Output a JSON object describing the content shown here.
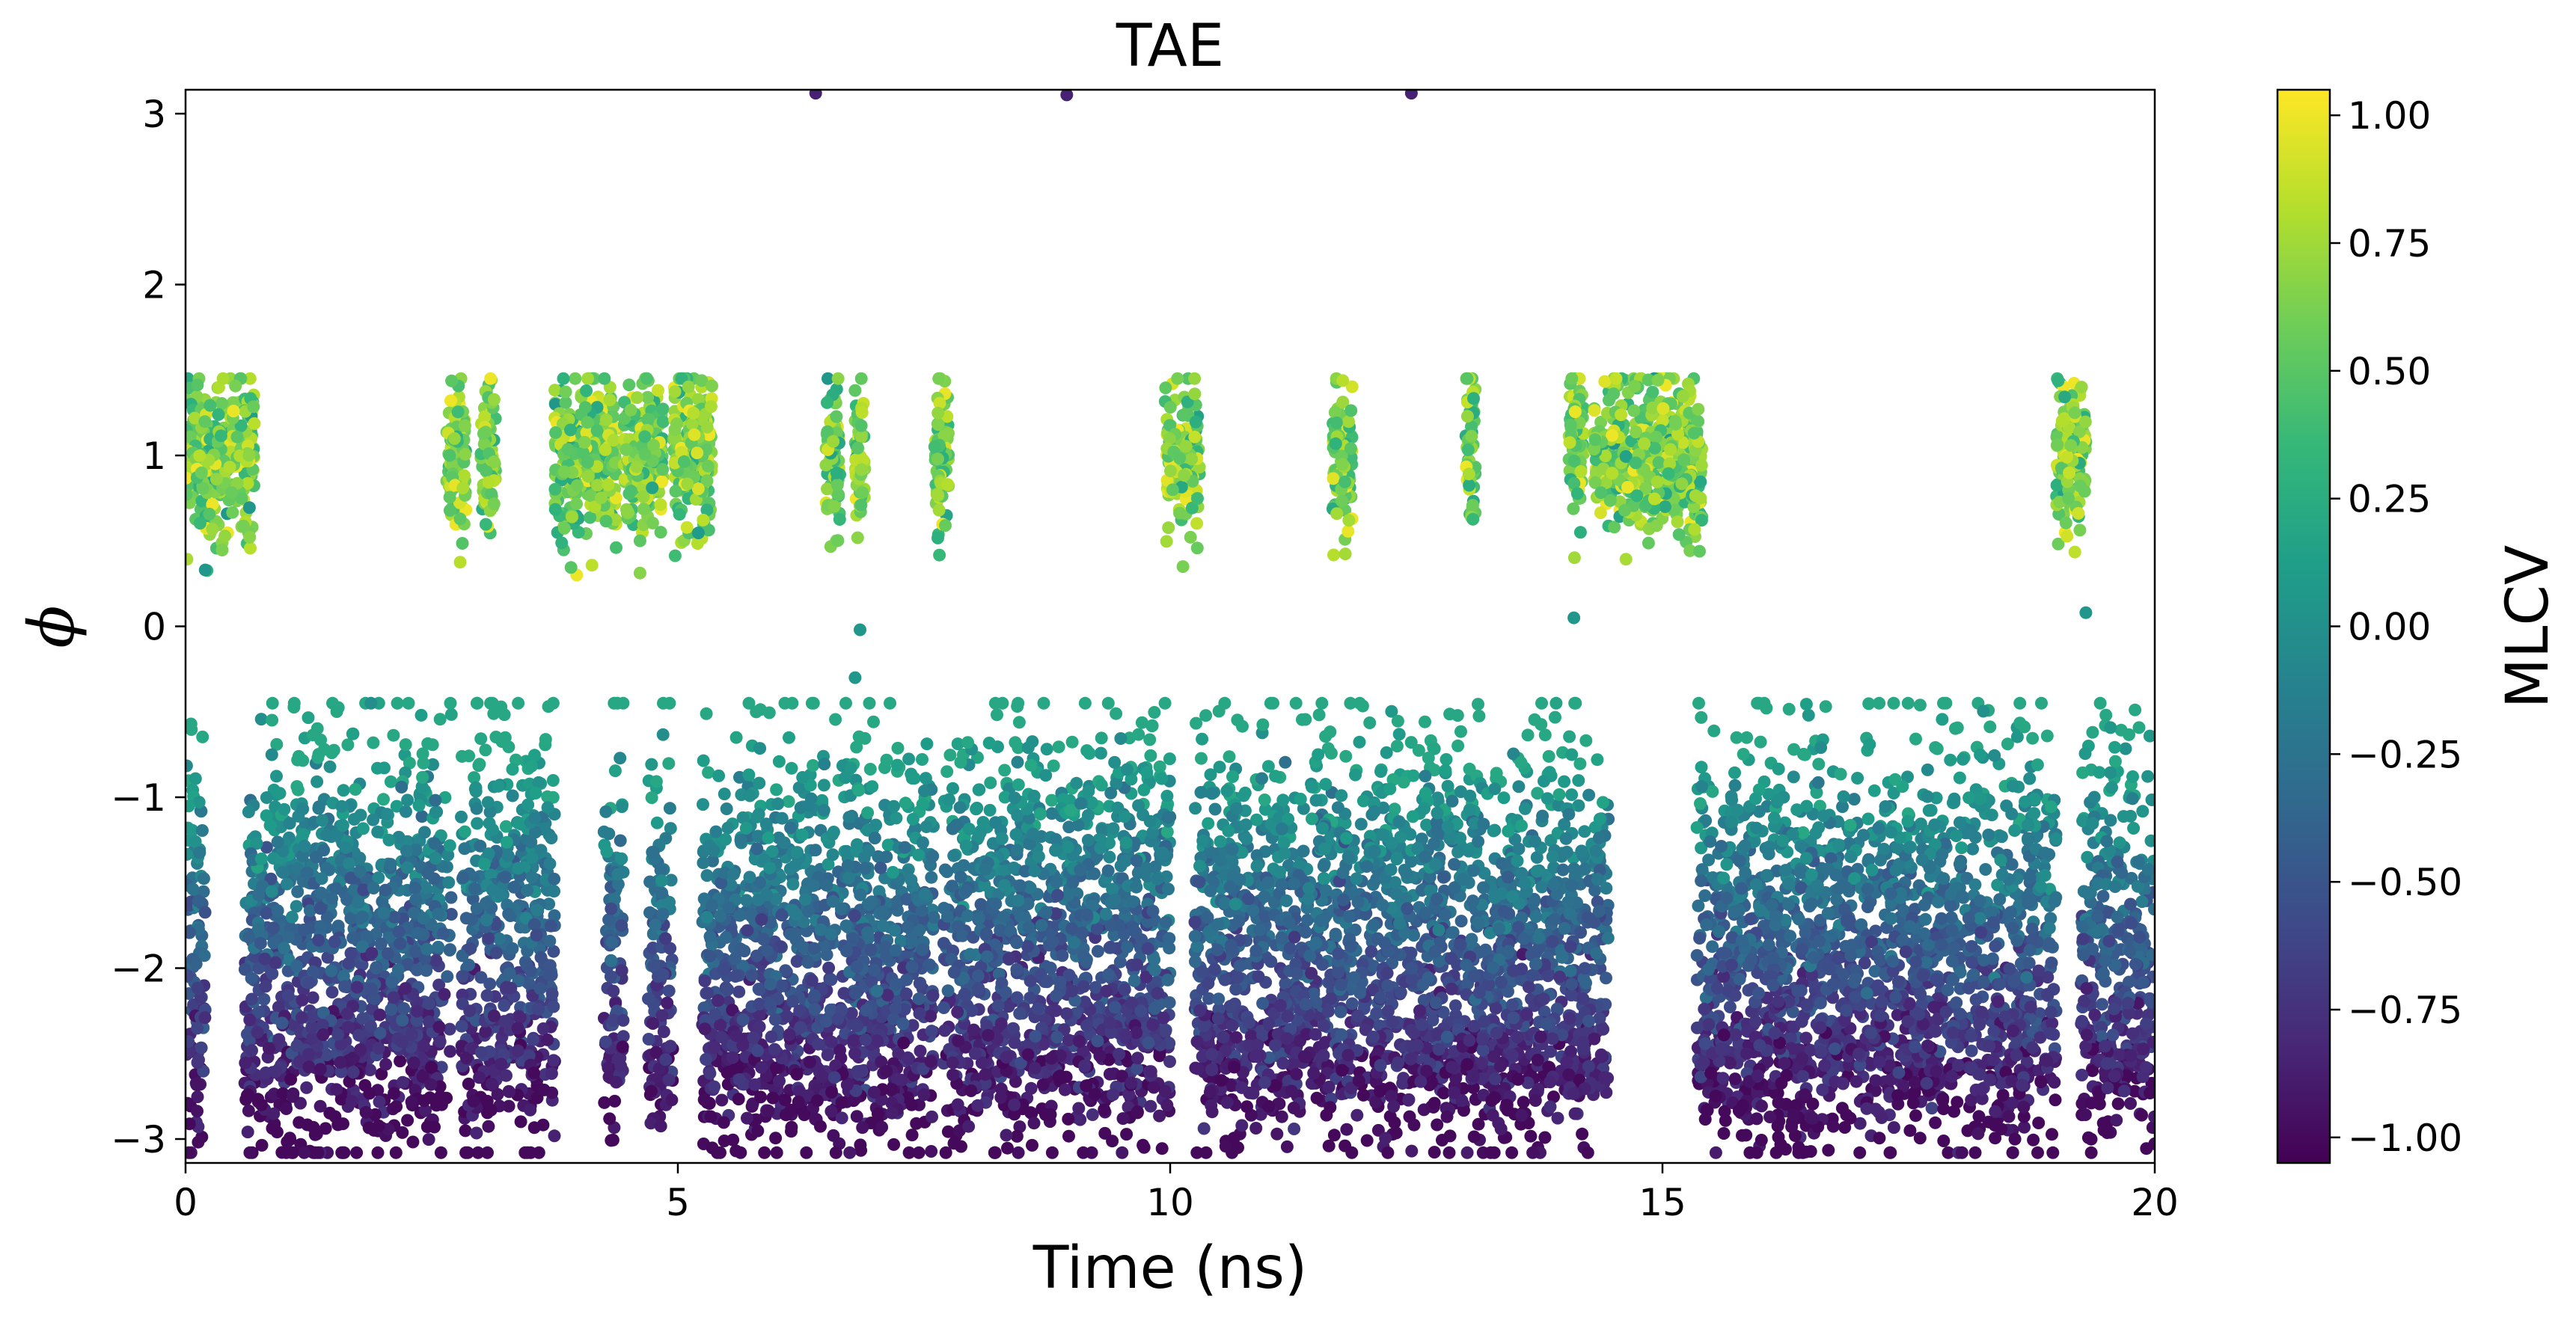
{
  "chart_data": {
    "type": "scatter",
    "title": "TAE",
    "xlabel": "Time (ns)",
    "ylabel": "ϕ",
    "xlim": [
      0,
      20
    ],
    "ylim": [
      -3.14,
      3.14
    ],
    "xticks": [
      0,
      5,
      10,
      15,
      20
    ],
    "xtick_labels": [
      "0",
      "5",
      "10",
      "15",
      "20"
    ],
    "yticks": [
      -3,
      -2,
      -1,
      0,
      1,
      2,
      3
    ],
    "ytick_labels": [
      "−3",
      "−2",
      "−1",
      "0",
      "1",
      "2",
      "3"
    ],
    "grid": false,
    "colormap": "viridis",
    "colorbar": {
      "label": "MLCV",
      "range": [
        -1.05,
        1.05
      ],
      "ticks": [
        -1.0,
        -0.75,
        -0.5,
        -0.25,
        0.0,
        0.25,
        0.5,
        0.75,
        1.0
      ],
      "tick_labels": [
        "−1.00",
        "−0.75",
        "−0.50",
        "−0.25",
        "0.00",
        "0.25",
        "0.50",
        "0.75",
        "1.00"
      ]
    },
    "series": [
      {
        "state": "upper",
        "phi_center": 1.0,
        "phi_spread": 0.22,
        "time_segments": [
          [
            0.0,
            0.7
          ],
          [
            2.65,
            2.85
          ],
          [
            3.0,
            3.15
          ],
          [
            3.75,
            4.4
          ],
          [
            4.45,
            4.85
          ],
          [
            4.95,
            5.35
          ],
          [
            6.5,
            6.65
          ],
          [
            6.8,
            6.9
          ],
          [
            7.6,
            7.75
          ],
          [
            9.95,
            10.3
          ],
          [
            11.65,
            11.85
          ],
          [
            13.0,
            13.1
          ],
          [
            14.05,
            14.2
          ],
          [
            14.3,
            15.4
          ],
          [
            19.0,
            19.3
          ]
        ]
      },
      {
        "state": "lower",
        "phi_center": -1.75,
        "phi_range": [
          -3.05,
          -0.5
        ],
        "time_segments": [
          [
            0.0,
            0.2
          ],
          [
            0.6,
            2.7
          ],
          [
            2.8,
            3.75
          ],
          [
            4.25,
            4.45
          ],
          [
            4.7,
            4.95
          ],
          [
            5.25,
            7.6
          ],
          [
            7.7,
            10.0
          ],
          [
            10.25,
            11.7
          ],
          [
            11.7,
            14.45
          ],
          [
            15.35,
            19.0
          ],
          [
            19.25,
            20.0
          ]
        ]
      },
      {
        "state": "outliers",
        "points": [
          [
            6.4,
            3.12
          ],
          [
            8.95,
            3.11
          ],
          [
            12.45,
            3.12
          ],
          [
            6.85,
            -0.02
          ],
          [
            6.8,
            -0.3
          ],
          [
            0.2,
            0.33
          ],
          [
            14.1,
            0.05
          ],
          [
            19.3,
            0.08
          ]
        ]
      }
    ]
  }
}
